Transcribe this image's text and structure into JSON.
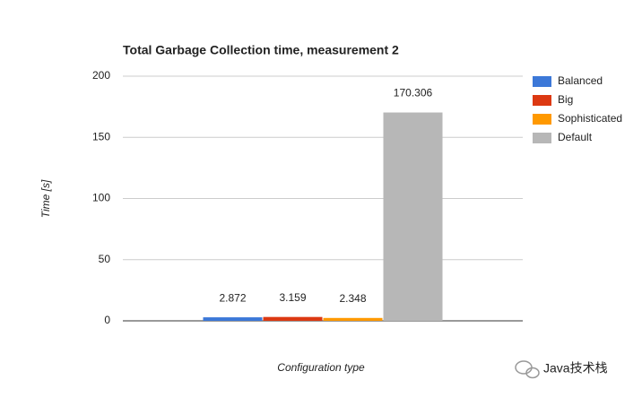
{
  "chart_data": {
    "type": "bar",
    "title": "Total Garbage Collection time, measurement 2",
    "y_label": "Time [s]",
    "x_label": "Configuration type",
    "categories": [
      null
    ],
    "series": [
      {
        "name": "Balanced",
        "color": "#3c78d8",
        "values": [
          2.872
        ]
      },
      {
        "name": "Big",
        "color": "#dc3912",
        "values": [
          3.159
        ]
      },
      {
        "name": "Sophisticated",
        "color": "#ff9900",
        "values": [
          2.348
        ]
      },
      {
        "name": "Default",
        "color": "#b7b7b7",
        "values": [
          170.306
        ]
      }
    ],
    "ylim": [
      0,
      200
    ],
    "yticks": [
      0,
      50,
      100,
      150,
      200
    ],
    "grid": true,
    "legend": "right"
  },
  "watermark": "Java技术栈"
}
